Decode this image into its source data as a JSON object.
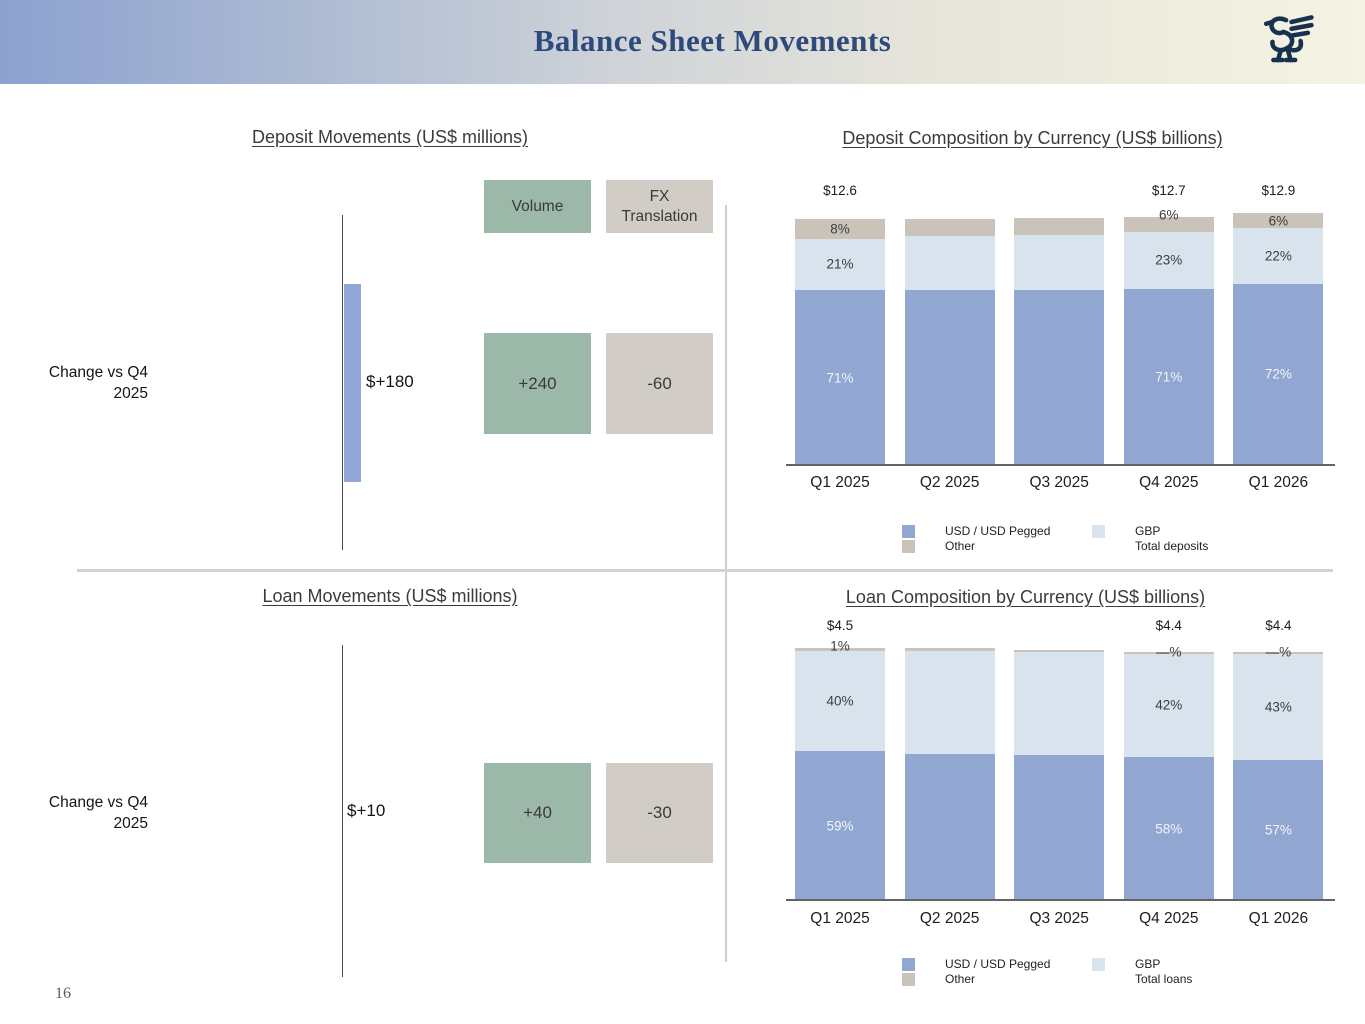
{
  "header": {
    "title": "Balance Sheet Movements",
    "logo": "griffin-logo"
  },
  "page_number": "16",
  "colors": {
    "usd": "#91a6d1",
    "gbp": "#d8e3ed",
    "other": "#c9c3b9",
    "volume_green": "#9bb8a9",
    "fx_gray": "#d1cdc6",
    "net_bar_blue": "#91a7d7",
    "title_navy": "#2d4a7a",
    "header_gradient_left": "#8ca1d0",
    "header_gradient_right": "#f5f3e3"
  },
  "chart_data": [
    {
      "id": "deposit_movements",
      "type": "bar",
      "variant": "waterfall",
      "title": "Deposit Movements (US$ millions)",
      "row_label": [
        "Change vs Q4",
        "2025"
      ],
      "net_label": "$+180",
      "net_value": 180,
      "columns": [
        {
          "name": "Volume",
          "value_label": "+240",
          "value": 240
        },
        {
          "name": "FX Translation",
          "value_label": "-60",
          "value": -60
        }
      ]
    },
    {
      "id": "deposits",
      "type": "bar",
      "variant": "stacked",
      "stacked": true,
      "title": "Deposit Composition by Currency (US$ billions)",
      "unit": "US$ billions",
      "categories": [
        "Q1 2025",
        "Q2 2025",
        "Q3 2025",
        "Q4 2025",
        "Q1 2026"
      ],
      "totals_labels": [
        "$12.6",
        "",
        "",
        "$12.7",
        "$12.9"
      ],
      "totals_values": [
        12.6,
        12.6,
        12.65,
        12.7,
        12.9
      ],
      "series": [
        {
          "name": "USD / USD Pegged",
          "color_key": "usd",
          "values": [
            71,
            71,
            71,
            71,
            72
          ],
          "labels": [
            "71%",
            "",
            "",
            "71%",
            "72%"
          ]
        },
        {
          "name": "GBP",
          "color_key": "gbp",
          "values": [
            21,
            22,
            22,
            23,
            22
          ],
          "labels": [
            "21%",
            "",
            "",
            "23%",
            "22%"
          ]
        },
        {
          "name": "Other",
          "color_key": "other",
          "values": [
            8,
            7,
            7,
            6,
            6
          ],
          "labels": [
            "8%",
            "",
            "",
            "6%",
            "6%"
          ]
        }
      ],
      "legend": [
        {
          "swatch": "usd",
          "label": "USD / USD Pegged"
        },
        {
          "swatch": "gbp",
          "label": "GBP"
        },
        {
          "swatch": "other",
          "label": "Other"
        },
        {
          "swatch": "",
          "label": "Total deposits"
        }
      ]
    },
    {
      "id": "loan_movements",
      "type": "bar",
      "variant": "waterfall",
      "title": "Loan Movements (US$ millions)",
      "row_label": [
        "Change vs Q4",
        "2025"
      ],
      "net_label": "$+10",
      "net_value": 10,
      "columns": [
        {
          "name": "Volume",
          "value_label": "+40",
          "value": 40
        },
        {
          "name": "FX Translation",
          "value_label": "-30",
          "value": -30
        }
      ]
    },
    {
      "id": "loans",
      "type": "bar",
      "variant": "stacked",
      "stacked": true,
      "title": "Loan Composition by Currency (US$ billions)",
      "unit": "US$ billions",
      "categories": [
        "Q1 2025",
        "Q2 2025",
        "Q3 2025",
        "Q4 2025",
        "Q1 2026"
      ],
      "totals_labels": [
        "$4.5",
        "",
        "",
        "$4.4",
        "$4.4"
      ],
      "totals_values": [
        4.5,
        4.5,
        4.47,
        4.4,
        4.4
      ],
      "series": [
        {
          "name": "USD / USD Pegged",
          "color_key": "usd",
          "values": [
            59,
            58,
            58,
            58,
            57
          ],
          "labels": [
            "59%",
            "",
            "",
            "58%",
            "57%"
          ]
        },
        {
          "name": "GBP",
          "color_key": "gbp",
          "values": [
            40,
            41,
            41,
            42,
            43
          ],
          "labels": [
            "40%",
            "",
            "",
            "42%",
            "43%"
          ]
        },
        {
          "name": "Other",
          "color_key": "other",
          "values": [
            1,
            1,
            1,
            0,
            0
          ],
          "labels": [
            "1%",
            "",
            "",
            "—%",
            "—%"
          ]
        }
      ],
      "legend": [
        {
          "swatch": "usd",
          "label": "USD / USD Pegged"
        },
        {
          "swatch": "gbp",
          "label": "GBP"
        },
        {
          "swatch": "other",
          "label": "Other"
        },
        {
          "swatch": "",
          "label": "Total loans"
        }
      ]
    }
  ]
}
